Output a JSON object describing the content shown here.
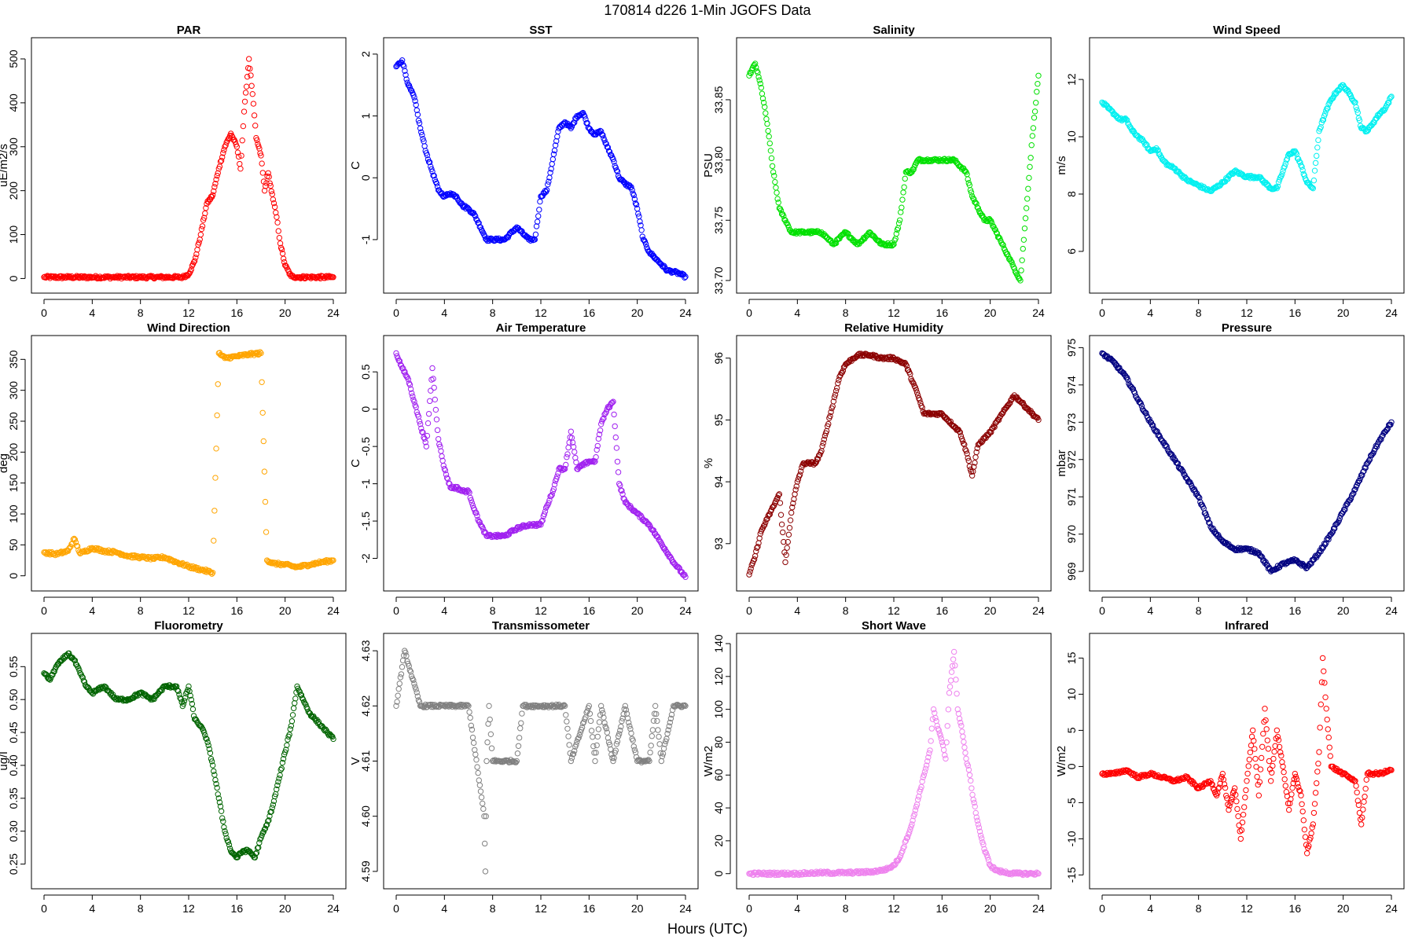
{
  "figure": {
    "title": "170814   d226   1-Min  JGOFS Data",
    "xlabel": "Hours (UTC)"
  },
  "chart_data": [
    {
      "type": "scatter",
      "title": "PAR",
      "ylabel": "uE/m2/s",
      "color": "#ff0000",
      "xlim": [
        0,
        24
      ],
      "xticks": [
        0,
        4,
        8,
        12,
        16,
        20,
        24
      ],
      "ylim": [
        -10,
        525
      ],
      "yticks": [
        0,
        100,
        200,
        300,
        400,
        500
      ],
      "x": [
        0,
        2,
        4,
        6,
        8,
        10,
        11.5,
        12,
        12.5,
        13,
        13.5,
        14,
        14.5,
        15,
        15.5,
        16,
        16.3,
        16.6,
        17,
        17.3,
        17.6,
        18,
        18.3,
        18.6,
        19,
        19.3,
        19.6,
        20,
        20.5,
        21,
        22,
        24
      ],
      "y": [
        3,
        3,
        3,
        3,
        3,
        3,
        3,
        10,
        40,
        100,
        170,
        190,
        250,
        300,
        330,
        300,
        250,
        380,
        500,
        420,
        320,
        280,
        200,
        240,
        180,
        140,
        80,
        30,
        5,
        3,
        3,
        3
      ]
    },
    {
      "type": "scatter",
      "title": "SST",
      "ylabel": "C",
      "color": "#0000ff",
      "xlim": [
        0,
        24
      ],
      "xticks": [
        0,
        4,
        8,
        12,
        16,
        20,
        24
      ],
      "ylim": [
        -1.7,
        2.1
      ],
      "yticks": [
        -1,
        0,
        1,
        2
      ],
      "x": [
        0,
        0.5,
        1,
        1.5,
        2,
        2.5,
        3,
        3.5,
        4,
        4.5,
        5,
        5.5,
        6,
        6.5,
        7,
        7.5,
        8,
        9,
        10,
        11,
        11.5,
        12,
        12.5,
        13,
        13.5,
        14,
        14.5,
        15,
        15.5,
        16,
        16.5,
        17,
        17.5,
        18,
        18.5,
        19,
        19.5,
        20,
        20.5,
        21,
        21.5,
        22,
        22.5,
        23,
        23.5,
        24
      ],
      "y": [
        1.8,
        1.9,
        1.5,
        1.3,
        0.8,
        0.4,
        0.1,
        -0.2,
        -0.3,
        -0.25,
        -0.3,
        -0.45,
        -0.5,
        -0.6,
        -0.8,
        -1.0,
        -1.0,
        -1.0,
        -0.8,
        -1.0,
        -1.0,
        -0.3,
        -0.2,
        0.3,
        0.8,
        0.9,
        0.8,
        1.0,
        1.05,
        0.8,
        0.7,
        0.75,
        0.5,
        0.3,
        0,
        -0.1,
        -0.15,
        -0.5,
        -1.0,
        -1.2,
        -1.3,
        -1.4,
        -1.5,
        -1.52,
        -1.55,
        -1.6
      ]
    },
    {
      "type": "scatter",
      "title": "Salinity",
      "ylabel": "PSU",
      "color": "#00e000",
      "xlim": [
        0,
        24
      ],
      "xticks": [
        0,
        4,
        8,
        12,
        16,
        20,
        24
      ],
      "ylim": [
        33.698,
        33.893
      ],
      "yticks": [
        33.7,
        33.75,
        33.8,
        33.85
      ],
      "x": [
        0,
        0.5,
        1,
        1.5,
        2,
        2.5,
        3,
        3.5,
        4,
        5,
        6,
        7,
        8,
        9,
        10,
        11,
        12,
        12.5,
        13,
        13.5,
        14,
        15,
        16,
        17,
        18,
        18.5,
        19,
        19.5,
        20,
        20.5,
        21,
        21.5,
        22,
        22.5,
        23,
        23.5,
        24
      ],
      "y": [
        33.87,
        33.88,
        33.86,
        33.83,
        33.79,
        33.76,
        33.75,
        33.74,
        33.74,
        33.74,
        33.74,
        33.73,
        33.74,
        33.73,
        33.74,
        33.73,
        33.73,
        33.75,
        33.79,
        33.79,
        33.8,
        33.8,
        33.8,
        33.8,
        33.79,
        33.77,
        33.76,
        33.75,
        33.75,
        33.74,
        33.73,
        33.72,
        33.71,
        33.7,
        33.76,
        33.82,
        33.87
      ]
    },
    {
      "type": "scatter",
      "title": "Wind Speed",
      "ylabel": "m/s",
      "color": "#00f0f0",
      "xlim": [
        0,
        24
      ],
      "xticks": [
        0,
        4,
        8,
        12,
        16,
        20,
        24
      ],
      "ylim": [
        4.9,
        13.1
      ],
      "yticks": [
        6,
        8,
        10,
        12
      ],
      "x": [
        0,
        0.5,
        1,
        1.5,
        2,
        2.5,
        3,
        3.5,
        4,
        4.5,
        5,
        5.5,
        6,
        6.5,
        7,
        7.5,
        8,
        8.5,
        9,
        10,
        11,
        12,
        13,
        14,
        14.5,
        15,
        15.5,
        16,
        16.5,
        17,
        17.5,
        18,
        18.5,
        19,
        19.5,
        20,
        20.5,
        21,
        21.5,
        22,
        22.5,
        23,
        23.5,
        24
      ],
      "y": [
        11.2,
        11,
        10.8,
        10.6,
        10.6,
        10.2,
        10,
        9.8,
        9.5,
        9.6,
        9.2,
        9,
        8.9,
        8.7,
        8.5,
        8.4,
        8.3,
        8.2,
        8.1,
        8.4,
        8.8,
        8.6,
        8.6,
        8.2,
        8.2,
        8.8,
        9.4,
        9.5,
        9.0,
        8.4,
        8.2,
        10.2,
        10.8,
        11.3,
        11.6,
        11.8,
        11.5,
        11.2,
        10.3,
        10.2,
        10.5,
        10.8,
        11,
        11.4
      ]
    },
    {
      "type": "scatter",
      "title": "Wind Direction",
      "ylabel": "deg",
      "color": "#ffa500",
      "xlim": [
        0,
        24
      ],
      "xticks": [
        0,
        4,
        8,
        12,
        16,
        20,
        24
      ],
      "ylim": [
        -8,
        372
      ],
      "yticks": [
        0,
        50,
        100,
        150,
        200,
        250,
        300,
        350
      ],
      "x": [
        0,
        1,
        2,
        2.5,
        3,
        4,
        5,
        6,
        7,
        8,
        9,
        10,
        11,
        12,
        13,
        14,
        14.5,
        15,
        16,
        17,
        18,
        18.5,
        19,
        20,
        21,
        22,
        23,
        24
      ],
      "y": [
        38,
        35,
        40,
        60,
        36,
        45,
        40,
        38,
        32,
        30,
        28,
        30,
        22,
        15,
        10,
        5,
        360,
        352,
        355,
        358,
        360,
        25,
        20,
        18,
        14,
        18,
        22,
        25
      ]
    },
    {
      "type": "scatter",
      "title": "Air Temperature",
      "ylabel": "C",
      "color": "#a020f0",
      "xlim": [
        0,
        24
      ],
      "xticks": [
        0,
        4,
        8,
        12,
        16,
        20,
        24
      ],
      "ylim": [
        -2.3,
        0.85
      ],
      "yticks": [
        -2,
        -1.5,
        -1,
        -0.5,
        0,
        0.5
      ],
      "x": [
        0,
        0.5,
        1,
        1.5,
        2,
        2.5,
        3,
        3.5,
        4,
        4.5,
        5,
        5.5,
        6,
        6.5,
        7,
        7.5,
        8,
        9,
        10,
        11,
        12,
        12.5,
        13,
        13.5,
        14,
        14.5,
        15,
        16,
        16.5,
        17,
        17.5,
        18,
        18.5,
        19,
        20,
        21,
        22,
        23,
        24
      ],
      "y": [
        0.75,
        0.55,
        0.4,
        0.1,
        -0.2,
        -0.5,
        0.55,
        -0.4,
        -0.8,
        -1.05,
        -1.05,
        -1.1,
        -1.1,
        -1.35,
        -1.55,
        -1.7,
        -1.7,
        -1.7,
        -1.6,
        -1.55,
        -1.55,
        -1.3,
        -1.1,
        -0.8,
        -0.8,
        -0.3,
        -0.8,
        -0.7,
        -0.7,
        -0.2,
        0.0,
        0.1,
        -1.0,
        -1.25,
        -1.4,
        -1.55,
        -1.8,
        -2.05,
        -2.25
      ]
    },
    {
      "type": "scatter",
      "title": "Relative Humidity",
      "ylabel": "%",
      "color": "#8b0000",
      "xlim": [
        0,
        24
      ],
      "xticks": [
        0,
        4,
        8,
        12,
        16,
        20,
        24
      ],
      "ylim": [
        92.4,
        96.2
      ],
      "yticks": [
        93,
        94,
        95,
        96
      ],
      "x": [
        0,
        0.5,
        1,
        1.5,
        2,
        2.5,
        3,
        3.5,
        4,
        4.5,
        5,
        5.5,
        6,
        6.5,
        7,
        7.5,
        8,
        9,
        10,
        11,
        12,
        13,
        14,
        14.5,
        15,
        16,
        17,
        17.5,
        18,
        18.5,
        19,
        20,
        21,
        22,
        22.5,
        23,
        24
      ],
      "y": [
        92.5,
        92.8,
        93.2,
        93.4,
        93.6,
        93.8,
        92.7,
        93.5,
        94.0,
        94.3,
        94.3,
        94.3,
        94.5,
        94.9,
        95.3,
        95.7,
        95.9,
        96.05,
        96.05,
        96.0,
        96.0,
        95.9,
        95.4,
        95.1,
        95.1,
        95.1,
        94.9,
        94.8,
        94.5,
        94.1,
        94.6,
        94.8,
        95.1,
        95.4,
        95.3,
        95.2,
        95.0
      ]
    },
    {
      "type": "scatter",
      "title": "Pressure",
      "ylabel": "mbar",
      "color": "#000080",
      "xlim": [
        0,
        24
      ],
      "xticks": [
        0,
        4,
        8,
        12,
        16,
        20,
        24
      ],
      "ylim": [
        968.75,
        975.05
      ],
      "yticks": [
        969,
        970,
        971,
        972,
        973,
        974,
        975
      ],
      "x": [
        0,
        1,
        2,
        3,
        4,
        5,
        6,
        7,
        8,
        9,
        10,
        11,
        12,
        13,
        14,
        15,
        16,
        17,
        18,
        19,
        20,
        21,
        22,
        23,
        24
      ],
      "y": [
        974.85,
        974.6,
        974.2,
        973.6,
        973.0,
        972.5,
        972.0,
        971.5,
        971.0,
        970.2,
        969.8,
        969.6,
        969.6,
        969.5,
        969.0,
        969.2,
        969.3,
        969.1,
        969.5,
        970.0,
        970.6,
        971.2,
        971.9,
        972.5,
        973.0
      ]
    },
    {
      "type": "scatter",
      "title": "Fluorometry",
      "ylabel": "ug/l",
      "color": "#006400",
      "xlim": [
        0,
        24
      ],
      "xticks": [
        0,
        4,
        8,
        12,
        16,
        20,
        24
      ],
      "ylim": [
        0.228,
        0.585
      ],
      "yticks": [
        0.25,
        0.3,
        0.35,
        0.4,
        0.45,
        0.5,
        0.55
      ],
      "x": [
        0,
        0.5,
        1,
        1.5,
        2,
        2.5,
        3,
        3.5,
        4,
        5,
        6,
        7,
        8,
        9,
        10,
        11,
        11.5,
        12,
        12.5,
        13,
        13.5,
        14,
        14.5,
        15,
        15.5,
        16,
        16.5,
        17,
        17.5,
        18,
        18.5,
        19,
        19.5,
        20,
        20.5,
        21,
        21.5,
        22,
        22.5,
        23,
        23.5,
        24
      ],
      "y": [
        0.54,
        0.53,
        0.55,
        0.56,
        0.57,
        0.56,
        0.54,
        0.52,
        0.51,
        0.52,
        0.5,
        0.5,
        0.51,
        0.5,
        0.52,
        0.52,
        0.49,
        0.52,
        0.47,
        0.46,
        0.44,
        0.4,
        0.35,
        0.3,
        0.27,
        0.26,
        0.27,
        0.27,
        0.26,
        0.29,
        0.31,
        0.34,
        0.38,
        0.42,
        0.46,
        0.52,
        0.5,
        0.48,
        0.47,
        0.46,
        0.45,
        0.44
      ]
    },
    {
      "type": "scatter",
      "title": "Transmissometer",
      "ylabel": "V",
      "color": "#808080",
      "xlim": [
        0,
        24
      ],
      "xticks": [
        0,
        4,
        8,
        12,
        16,
        20,
        24
      ],
      "ylim": [
        4.5887,
        4.6313
      ],
      "yticks": [
        4.59,
        4.6,
        4.61,
        4.62,
        4.63
      ],
      "x": [
        0,
        0.7,
        2,
        4,
        6,
        7.3,
        7.4,
        7.5,
        7.7,
        8,
        9,
        10,
        10.5,
        12,
        14,
        14.5,
        16,
        16.5,
        17,
        18,
        19,
        20,
        21,
        21.5,
        22,
        23,
        24
      ],
      "y": [
        4.62,
        4.63,
        4.62,
        4.62,
        4.62,
        4.6,
        4.59,
        4.61,
        4.62,
        4.61,
        4.61,
        4.61,
        4.62,
        4.62,
        4.62,
        4.61,
        4.62,
        4.61,
        4.62,
        4.61,
        4.62,
        4.61,
        4.61,
        4.62,
        4.61,
        4.62,
        4.62
      ]
    },
    {
      "type": "scatter",
      "title": "Short Wave",
      "ylabel": "W/m2",
      "color": "#ee82ee",
      "xlim": [
        0,
        24
      ],
      "xticks": [
        0,
        4,
        8,
        12,
        16,
        20,
        24
      ],
      "ylim": [
        -3,
        140
      ],
      "yticks": [
        0,
        20,
        40,
        60,
        80,
        100,
        120,
        140
      ],
      "x": [
        0,
        2,
        4,
        6,
        8,
        10,
        11,
        11.5,
        12,
        12.5,
        13,
        13.5,
        14,
        14.5,
        15,
        15.3,
        15.6,
        16,
        16.3,
        16.6,
        17,
        17.3,
        17.6,
        18,
        18.3,
        18.6,
        19,
        19.5,
        20,
        20.5,
        21,
        22,
        23,
        24
      ],
      "y": [
        0,
        0,
        0,
        0.5,
        0.5,
        1,
        2,
        3,
        5,
        10,
        20,
        30,
        45,
        60,
        75,
        100,
        90,
        80,
        70,
        110,
        135,
        100,
        90,
        70,
        60,
        45,
        30,
        15,
        5,
        2,
        1,
        0,
        0,
        0
      ]
    },
    {
      "type": "scatter",
      "title": "Infrared",
      "ylabel": "W/m2",
      "color": "#ff0000",
      "xlim": [
        0,
        24
      ],
      "xticks": [
        0,
        4,
        8,
        12,
        16,
        20,
        24
      ],
      "ylim": [
        -15.5,
        17
      ],
      "yticks": [
        -15,
        -10,
        -5,
        0,
        5,
        10,
        15
      ],
      "x": [
        0,
        1,
        2,
        3,
        4,
        5,
        6,
        7,
        8,
        9,
        9.5,
        10,
        10.5,
        11,
        11.5,
        12,
        12.5,
        13,
        13.5,
        14,
        14.5,
        15,
        15.5,
        16,
        16.5,
        17,
        17.5,
        18,
        18.3,
        18.6,
        19,
        20,
        21,
        21.5,
        22,
        23,
        24
      ],
      "y": [
        -1,
        -1,
        -0.5,
        -1.5,
        -1,
        -1.5,
        -2,
        -1.5,
        -3,
        -2,
        -4,
        -1,
        -6,
        -3,
        -10,
        -2,
        5,
        -4,
        8,
        -2,
        5,
        0,
        -6,
        -1,
        -4,
        -12,
        -8,
        2,
        15,
        8,
        0,
        -1,
        -2,
        -8,
        -1,
        -1,
        -0.5
      ]
    }
  ]
}
